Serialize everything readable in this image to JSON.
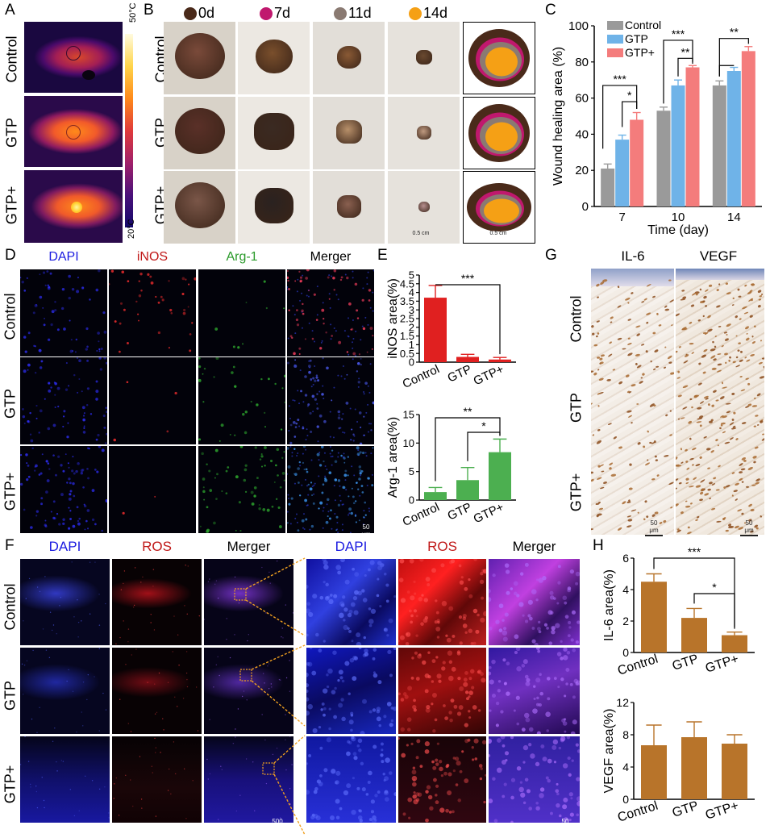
{
  "panel_letters": {
    "A": "A",
    "B": "B",
    "C": "C",
    "D": "D",
    "E": "E",
    "F": "F",
    "G": "G",
    "H": "H"
  },
  "row_labels": {
    "control": "Control",
    "gtp": "GTP",
    "gtpplus": "GTP+"
  },
  "panel_a": {
    "scale_top": "50°C",
    "scale_bottom": "20°C"
  },
  "panel_b": {
    "legend": [
      {
        "label": "0d",
        "color": "#4a2a1a"
      },
      {
        "label": "7d",
        "color": "#c0186e"
      },
      {
        "label": "11d",
        "color": "#8a7a72"
      },
      {
        "label": "14d",
        "color": "#f5a015"
      }
    ],
    "scale": "0.5 cm"
  },
  "panel_d": {
    "columns": [
      "DAPI",
      "iNOS",
      "Arg-1",
      "Merger"
    ],
    "column_colors": [
      "#1a1ae0",
      "#c01818",
      "#2a9a2a",
      "#000000"
    ],
    "scale": "50 μm"
  },
  "panel_f": {
    "columns": [
      "DAPI",
      "ROS",
      "Merger",
      "DAPI",
      "ROS",
      "Merger"
    ],
    "column_colors": [
      "#1a1ae0",
      "#c01818",
      "#000000",
      "#1a1ae0",
      "#c01818",
      "#000000"
    ],
    "scale_left": "500 μm",
    "scale_right": "50 μm"
  },
  "panel_g": {
    "columns": [
      "IL-6",
      "VEGF"
    ],
    "scale": "50 μm"
  },
  "chart_data": [
    {
      "id": "C",
      "type": "bar",
      "categories": [
        "7",
        "10",
        "14"
      ],
      "xlabel": "Time (day)",
      "ylabel": "Wound healing area (%)",
      "ylim": [
        0,
        100
      ],
      "yticks": [
        0,
        20,
        40,
        60,
        80,
        100
      ],
      "series": [
        {
          "name": "Control",
          "color": "#9a9a9a",
          "values": [
            21,
            53,
            67
          ],
          "errors": [
            2.5,
            2,
            2.5
          ]
        },
        {
          "name": "GTP",
          "color": "#6fb3e8",
          "values": [
            37,
            67,
            75
          ],
          "errors": [
            2.5,
            3,
            2
          ]
        },
        {
          "name": "GTP+",
          "color": "#f47c7c",
          "values": [
            48,
            77,
            86
          ],
          "errors": [
            4,
            1,
            2.5
          ]
        }
      ],
      "significance": [
        "***",
        "*",
        "***",
        "**",
        "**"
      ],
      "legend": "top-left"
    },
    {
      "id": "E-top",
      "type": "bar",
      "categories": [
        "Control",
        "GTP",
        "GTP+"
      ],
      "ylabel": "iNOS area(%)",
      "ylim": [
        0,
        5
      ],
      "yticks": [
        0,
        0.5,
        1,
        1.5,
        2,
        2.5,
        3,
        3.5,
        4,
        4.5,
        5
      ],
      "color": "#e02020",
      "values": [
        3.7,
        0.3,
        0.15
      ],
      "errors": [
        0.7,
        0.15,
        0.12
      ],
      "significance": [
        "***"
      ]
    },
    {
      "id": "E-bottom",
      "type": "bar",
      "categories": [
        "Control",
        "GTP",
        "GTP+"
      ],
      "ylabel": "Arg-1 area(%)",
      "ylim": [
        0,
        15
      ],
      "yticks": [
        0,
        5,
        10,
        15
      ],
      "color": "#4caf50",
      "values": [
        1.4,
        3.5,
        8.4
      ],
      "errors": [
        0.8,
        2.2,
        2.3
      ],
      "significance": [
        "**",
        "*"
      ]
    },
    {
      "id": "H-top",
      "type": "bar",
      "categories": [
        "Control",
        "GTP",
        "GTP+"
      ],
      "ylabel": "IL-6 area(%)",
      "ylim": [
        0,
        6
      ],
      "yticks": [
        0,
        2,
        4,
        6
      ],
      "color": "#b8742a",
      "values": [
        4.5,
        2.2,
        1.1
      ],
      "errors": [
        0.5,
        0.6,
        0.2
      ],
      "significance": [
        "***",
        "*"
      ]
    },
    {
      "id": "H-bottom",
      "type": "bar",
      "categories": [
        "Control",
        "GTP",
        "GTP+"
      ],
      "ylabel": "VEGF area(%)",
      "ylim": [
        0,
        12
      ],
      "yticks": [
        0,
        4,
        8,
        12
      ],
      "color": "#b8742a",
      "values": [
        6.7,
        7.7,
        6.9
      ],
      "errors": [
        2.5,
        1.9,
        1.1
      ],
      "significance": []
    }
  ]
}
